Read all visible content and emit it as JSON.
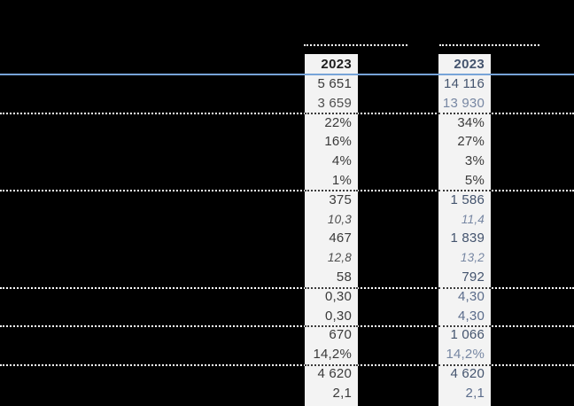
{
  "table": {
    "column_groups": [
      {
        "header": "2023",
        "cells": [
          {
            "t": "5 651",
            "v": "dark"
          },
          {
            "t": "3 659",
            "v": "mid"
          },
          {
            "t": "22%",
            "v": "dark"
          },
          {
            "t": "16%",
            "v": "dark"
          },
          {
            "t": "4%",
            "v": "dark"
          },
          {
            "t": "1%",
            "v": "dark"
          },
          {
            "t": "375",
            "v": "dark"
          },
          {
            "t": "10,3",
            "v": "mid-italic"
          },
          {
            "t": "467",
            "v": "dark"
          },
          {
            "t": "12,8",
            "v": "mid-italic"
          },
          {
            "t": "58",
            "v": "dark"
          },
          {
            "t": "0,30",
            "v": "dark"
          },
          {
            "t": "0,30",
            "v": "dark"
          },
          {
            "t": "670",
            "v": "dark"
          },
          {
            "t": "14,2%",
            "v": "dark"
          },
          {
            "t": "4 620",
            "v": "dark"
          },
          {
            "t": "2,1",
            "v": "dark"
          }
        ]
      },
      {
        "header": "2023",
        "cells": [
          {
            "t": "14 116",
            "v": "navy"
          },
          {
            "t": "13 930",
            "v": "navy-muted"
          },
          {
            "t": "34%",
            "v": "dark"
          },
          {
            "t": "27%",
            "v": "dark"
          },
          {
            "t": "3%",
            "v": "dark"
          },
          {
            "t": "5%",
            "v": "dark"
          },
          {
            "t": "1 586",
            "v": "navy"
          },
          {
            "t": "11,4",
            "v": "navy-muted-italic"
          },
          {
            "t": "1 839",
            "v": "navy"
          },
          {
            "t": "13,2",
            "v": "navy-muted-italic"
          },
          {
            "t": "792",
            "v": "navy"
          },
          {
            "t": "4,30",
            "v": "navy-mid"
          },
          {
            "t": "4,30",
            "v": "navy-mid"
          },
          {
            "t": "1 066",
            "v": "navy"
          },
          {
            "t": "14,2%",
            "v": "navy-muted"
          },
          {
            "t": "4 620",
            "v": "navy"
          },
          {
            "t": "2,1",
            "v": "navy-mid"
          }
        ]
      }
    ],
    "colors": {
      "background": "#000000",
      "strip_bg": "#f3f3f3",
      "header_rule_blue": "#77a4d8",
      "dotted_line_light": "#ffffff",
      "dotted_line_dark": "#3a3a3a",
      "text_dark": "#3a3a3a",
      "text_mid": "#4e4e4e",
      "text_navy": "#44546e",
      "text_navy_mid": "#5b6c8b",
      "text_navy_muted": "#7787a3"
    }
  }
}
